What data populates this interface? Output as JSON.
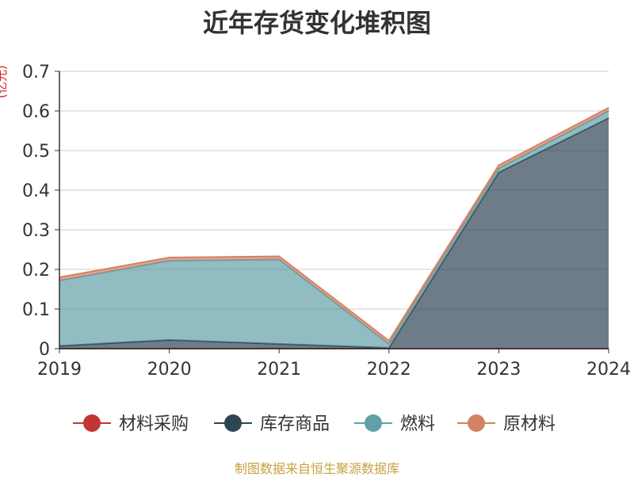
{
  "chart_data": {
    "type": "area",
    "stacked": true,
    "title": "近年存货变化堆积图",
    "unit_label": "(亿元)",
    "categories": [
      "2019",
      "2020",
      "2021",
      "2022",
      "2023",
      "2024"
    ],
    "ylim": [
      0,
      0.7
    ],
    "y_ticks": [
      "0",
      "0.1",
      "0.2",
      "0.3",
      "0.4",
      "0.5",
      "0.6",
      "0.7"
    ],
    "grid": true,
    "legend_position": "bottom",
    "series": [
      {
        "name": "材料采购",
        "color": "#c23531",
        "values": [
          0,
          0,
          0,
          0,
          0,
          0
        ]
      },
      {
        "name": "库存商品",
        "color": "#2f4554",
        "values": [
          0.007,
          0.022,
          0.012,
          0.002,
          0.445,
          0.582
        ]
      },
      {
        "name": "燃料",
        "color": "#61a0a8",
        "values": [
          0.165,
          0.2,
          0.213,
          0.01,
          0.01,
          0.018
        ]
      },
      {
        "name": "原材料",
        "color": "#d48265",
        "values": [
          0.008,
          0.008,
          0.008,
          0.008,
          0.008,
          0.008
        ]
      }
    ]
  },
  "footer": {
    "source": "制图数据来自恒生聚源数据库"
  }
}
